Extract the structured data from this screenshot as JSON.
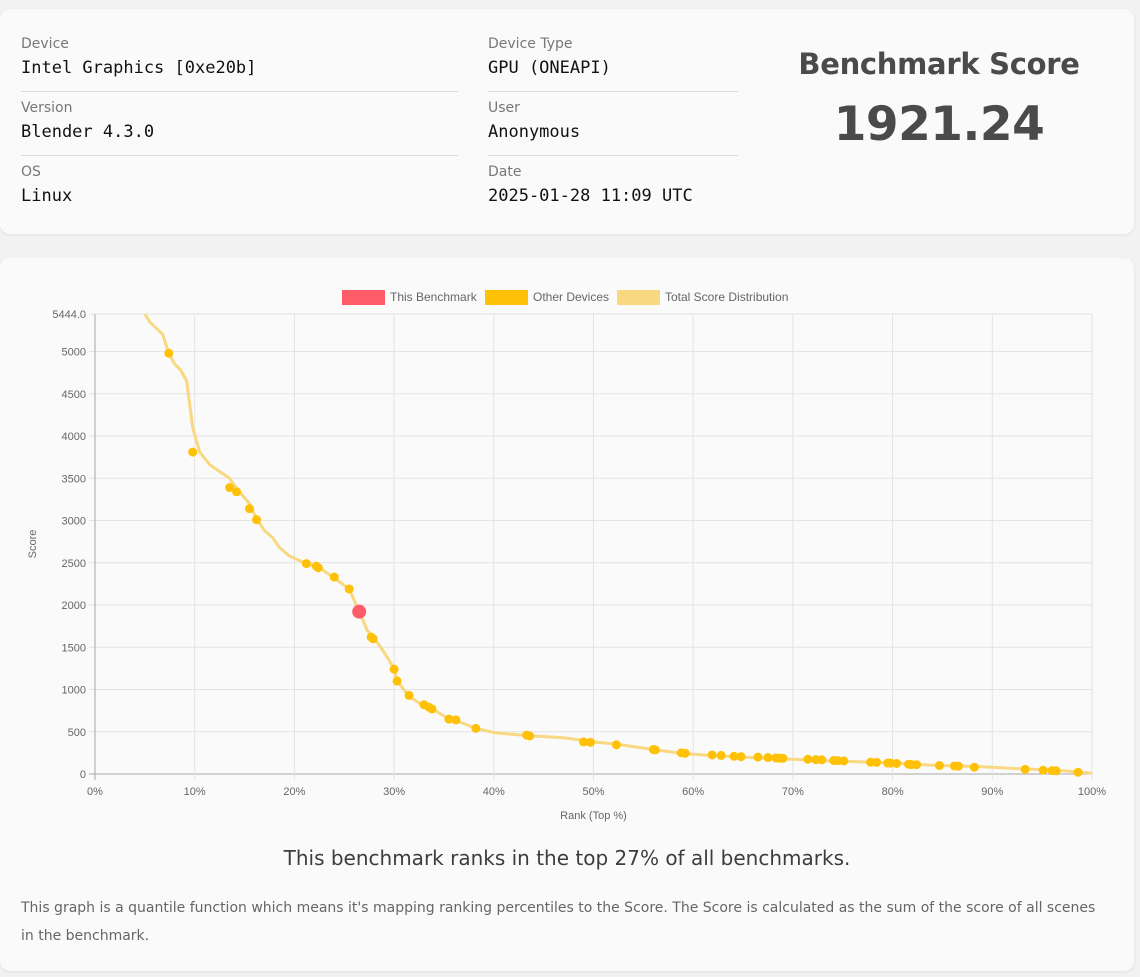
{
  "device": {
    "label": "Device",
    "value": "Intel Graphics [0xe20b]"
  },
  "version": {
    "label": "Version",
    "value": "Blender 4.3.0"
  },
  "os": {
    "label": "OS",
    "value": "Linux"
  },
  "device_type": {
    "label": "Device Type",
    "value": "GPU (ONEAPI)"
  },
  "user": {
    "label": "User",
    "value": "Anonymous"
  },
  "date": {
    "label": "Date",
    "value": "2025-01-28 11:09 UTC"
  },
  "benchmark": {
    "title": "Benchmark Score",
    "score": "1921.24"
  },
  "summary": {
    "rank_text": "This benchmark ranks in the top 27% of all benchmarks.",
    "note": "This graph is a quantile function which means it's mapping ranking percentiles to the Score. The Score is calculated as the sum of the score of all scenes in the benchmark."
  },
  "chart_data": {
    "type": "line",
    "xlabel": "Rank (Top %)",
    "ylabel": "Score",
    "xlim": [
      0,
      100
    ],
    "ylim": [
      0,
      5444
    ],
    "x_ticks": [
      "0%",
      "10%",
      "20%",
      "30%",
      "40%",
      "50%",
      "60%",
      "70%",
      "80%",
      "90%",
      "100%"
    ],
    "y_ticks": [
      "0",
      "500",
      "1000",
      "1500",
      "2000",
      "2500",
      "3000",
      "3500",
      "4000",
      "4500",
      "5000",
      "5444.0"
    ],
    "grid": true,
    "legend_position": "top",
    "colors": {
      "this_benchmark": "#ff5c6a",
      "other_devices": "#ffc107",
      "distribution": "#f8d880"
    },
    "series": [
      {
        "name": "Total Score Distribution",
        "type": "line",
        "x": [
          5.0,
          5.5,
          6.8,
          7.4,
          8.0,
          8.6,
          9.2,
          9.8,
          10.5,
          11.5,
          12.5,
          13.5,
          14.2,
          15.5,
          16.2,
          17.0,
          17.8,
          18.5,
          19.5,
          21.2,
          22.4,
          24.0,
          25.5,
          26.5,
          27.3,
          28.0,
          29.0,
          30.0,
          30.3,
          31.5,
          33.0,
          34.0,
          35.5,
          36.5,
          38.2,
          40.0,
          43.4,
          47.0,
          50.0,
          52.5,
          56.0,
          58.8,
          62.0,
          65.0,
          68.0,
          70.0,
          72.0,
          75.0,
          78.0,
          80.0,
          82.0,
          85.0,
          88.0,
          90.0,
          93.0,
          96.5,
          98.6,
          100.0
        ],
        "y": [
          5444,
          5350,
          5200,
          4980,
          4850,
          4780,
          4650,
          4100,
          3810,
          3660,
          3580,
          3500,
          3380,
          3200,
          3020,
          2880,
          2800,
          2680,
          2580,
          2490,
          2450,
          2320,
          2190,
          1921,
          1700,
          1610,
          1440,
          1250,
          1100,
          920,
          800,
          760,
          650,
          620,
          540,
          490,
          455,
          430,
          380,
          350,
          290,
          245,
          215,
          200,
          180,
          175,
          165,
          150,
          140,
          130,
          115,
          100,
          90,
          80,
          60,
          45,
          25,
          10
        ]
      },
      {
        "name": "Other Devices",
        "type": "scatter",
        "x": [
          7.4,
          9.8,
          13.5,
          14.2,
          15.5,
          16.2,
          21.2,
          22.2,
          22.4,
          24.0,
          25.5,
          27.7,
          27.9,
          30.0,
          30.3,
          31.5,
          33.0,
          33.5,
          33.8,
          35.5,
          36.2,
          38.2,
          43.3,
          43.6,
          49.0,
          49.7,
          52.3,
          56.0,
          56.2,
          58.8,
          59.2,
          61.9,
          62.8,
          64.1,
          64.8,
          66.5,
          67.5,
          68.3,
          68.6,
          69.0,
          71.5,
          72.3,
          72.9,
          74.1,
          74.5,
          75.1,
          77.8,
          78.4,
          79.5,
          79.8,
          80.4,
          81.6,
          81.9,
          82.4,
          84.7,
          86.2,
          86.6,
          88.2,
          93.3,
          95.1,
          96.0,
          96.4,
          98.6
        ],
        "y": [
          4980,
          3810,
          3390,
          3340,
          3140,
          3010,
          2490,
          2460,
          2440,
          2330,
          2190,
          1620,
          1600,
          1240,
          1100,
          930,
          820,
          790,
          770,
          650,
          640,
          540,
          460,
          450,
          380,
          375,
          345,
          290,
          285,
          250,
          245,
          225,
          220,
          210,
          205,
          200,
          195,
          190,
          188,
          186,
          175,
          170,
          168,
          160,
          158,
          155,
          140,
          138,
          130,
          128,
          125,
          115,
          112,
          110,
          100,
          95,
          92,
          80,
          55,
          45,
          40,
          38,
          20
        ]
      },
      {
        "name": "This Benchmark",
        "type": "scatter",
        "x": [
          26.5
        ],
        "y": [
          1921.24
        ]
      }
    ]
  }
}
